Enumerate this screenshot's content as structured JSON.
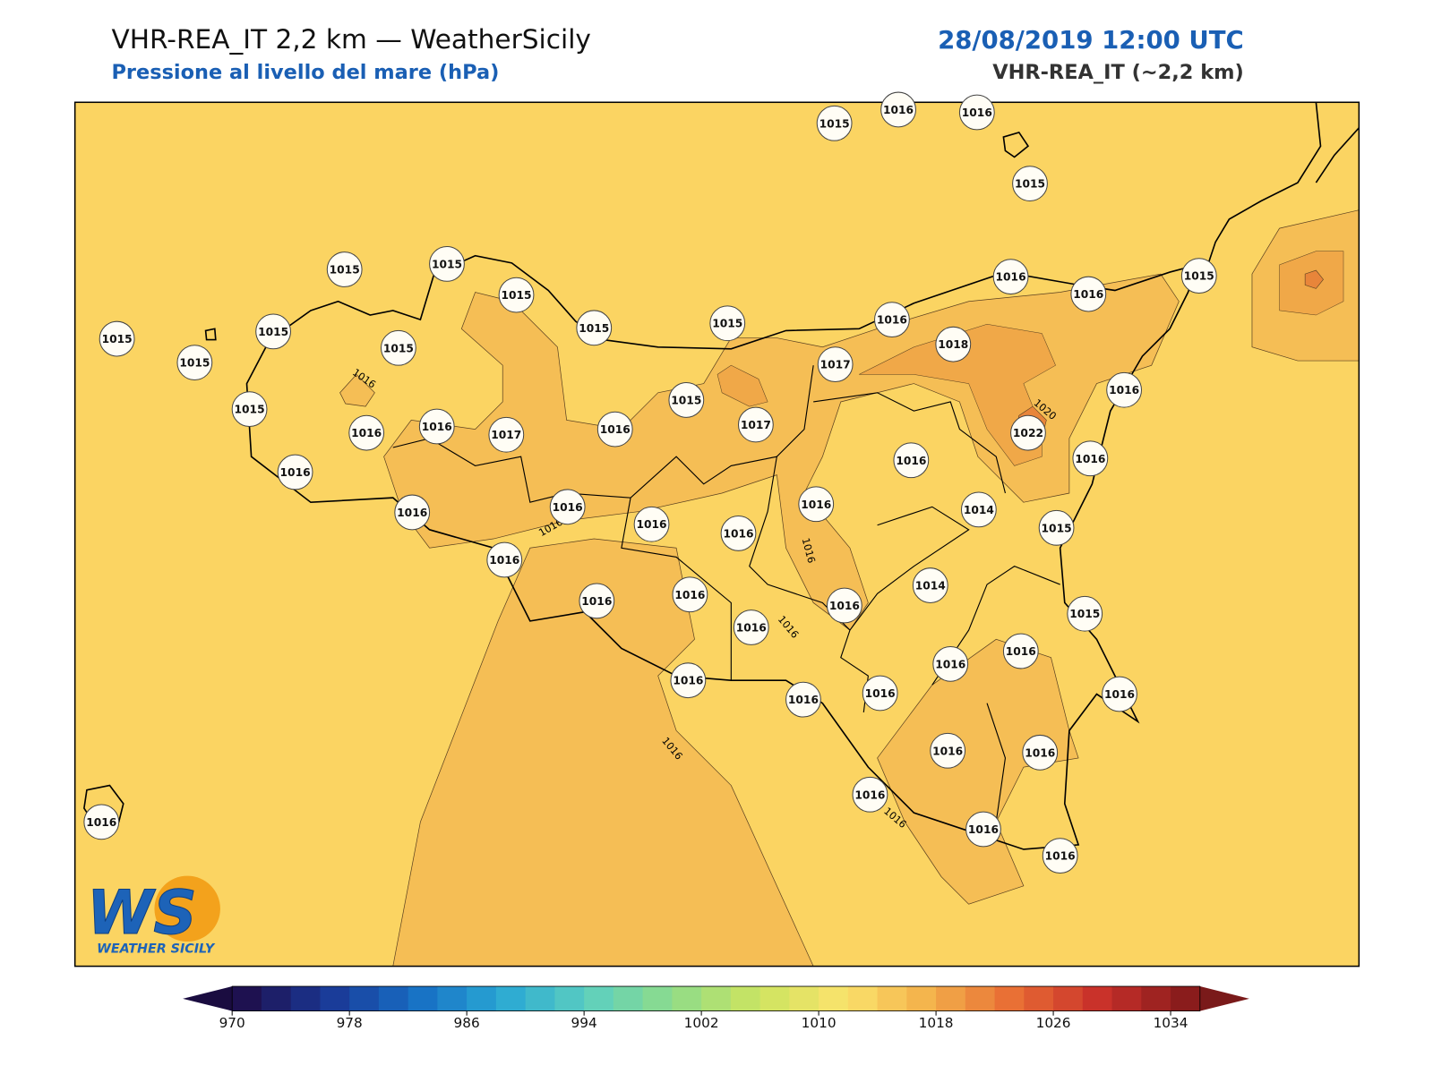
{
  "header": {
    "title": "VHR-REA_IT 2,2 km — WeatherSicily",
    "subtitle": "Pressione al livello del mare (hPa)",
    "datetime": "28/08/2019 12:00 UTC",
    "model": "VHR-REA_IT (~2,2 km)"
  },
  "stations": [
    1015,
    1016,
    1016,
    1015,
    1015,
    1015,
    1015,
    1015,
    1015,
    1016,
    1016,
    1016,
    1015,
    1015,
    1015,
    1015,
    1015,
    1017,
    1018,
    1015,
    1015,
    1016,
    1016,
    1016,
    1017,
    1016,
    1017,
    1022,
    1016,
    1016,
    1016,
    1016,
    1016,
    1016,
    1016,
    1016,
    1014,
    1015,
    1016,
    1016,
    1016,
    1016,
    1016,
    1014,
    1015,
    1016,
    1016,
    1016,
    1016,
    1016,
    1016,
    1016,
    1016,
    1016,
    1016,
    1016,
    1016
  ],
  "contour_labels": [
    1016,
    1016,
    1016,
    1016,
    1016,
    1016,
    1020
  ],
  "colorbar": {
    "lim": [
      970,
      1036
    ],
    "ticks": [
      970,
      978,
      986,
      994,
      1002,
      1010,
      1018,
      1026,
      1034
    ]
  },
  "logo": {
    "mark": "WS",
    "name": "WEATHER SICILY"
  }
}
